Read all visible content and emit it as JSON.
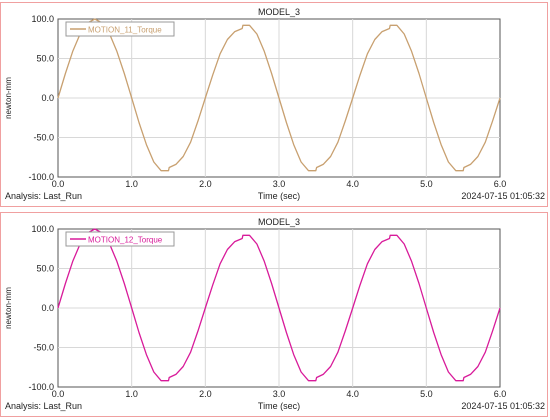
{
  "chart_data": [
    {
      "type": "line",
      "title": "MODEL_3",
      "xlabel": "Time (sec)",
      "ylabel": "newton-mm",
      "xlim": [
        0,
        6
      ],
      "ylim": [
        -100,
        100
      ],
      "xticks": [
        "0.0",
        "1.0",
        "2.0",
        "3.0",
        "4.0",
        "5.0",
        "6.0"
      ],
      "yticks": [
        "100.0",
        "50.0",
        "0.0",
        "-50.0",
        "-100.0"
      ],
      "grid": true,
      "legend_position": "top-left",
      "footer_left": "Analysis:  Last_Run",
      "footer_right": "2024-07-15 01:05:32",
      "series": [
        {
          "name": "MOTION_11_Torque",
          "color": "#c8a070",
          "x": [
            0.0,
            0.1,
            0.2,
            0.3,
            0.4,
            0.5,
            0.6,
            0.7,
            0.8,
            0.9,
            1.0,
            1.1,
            1.2,
            1.3,
            1.4,
            1.5,
            1.51,
            1.6,
            1.7,
            1.8,
            1.9,
            2.0,
            2.1,
            2.2,
            2.3,
            2.4,
            2.5,
            2.51,
            2.6,
            2.7,
            2.8,
            2.9,
            3.0,
            3.1,
            3.2,
            3.3,
            3.4,
            3.5,
            3.51,
            3.6,
            3.7,
            3.8,
            3.9,
            4.0,
            4.1,
            4.2,
            4.3,
            4.4,
            4.5,
            4.51,
            4.6,
            4.7,
            4.8,
            4.9,
            5.0,
            5.1,
            5.2,
            5.3,
            5.4,
            5.5,
            5.51,
            5.6,
            5.7,
            5.8,
            5.9,
            6.0
          ],
          "y": [
            0,
            31,
            59,
            81,
            95,
            100,
            95,
            81,
            59,
            31,
            0,
            -31,
            -59,
            -81,
            -92,
            -92,
            -88,
            -84,
            -74,
            -56,
            -29,
            0,
            29,
            56,
            74,
            84,
            88,
            92,
            92,
            81,
            59,
            31,
            0,
            -31,
            -59,
            -81,
            -92,
            -92,
            -88,
            -84,
            -74,
            -56,
            -29,
            0,
            29,
            56,
            74,
            84,
            88,
            92,
            92,
            81,
            59,
            31,
            0,
            -31,
            -59,
            -81,
            -92,
            -92,
            -88,
            -84,
            -74,
            -56,
            -29,
            0
          ]
        }
      ]
    },
    {
      "type": "line",
      "title": "MODEL_3",
      "xlabel": "Time (sec)",
      "ylabel": "newton-mm",
      "xlim": [
        0,
        6
      ],
      "ylim": [
        -100,
        100
      ],
      "xticks": [
        "0.0",
        "1.0",
        "2.0",
        "3.0",
        "4.0",
        "5.0",
        "6.0"
      ],
      "yticks": [
        "100.0",
        "50.0",
        "0.0",
        "-50.0",
        "-100.0"
      ],
      "grid": true,
      "legend_position": "top-left",
      "footer_left": "Analysis:  Last_Run",
      "footer_right": "2024-07-15 01:05:32",
      "series": [
        {
          "name": "MOTION_12_Torque",
          "color": "#d81b9a",
          "x": [
            0.0,
            0.1,
            0.2,
            0.3,
            0.4,
            0.5,
            0.6,
            0.7,
            0.8,
            0.9,
            1.0,
            1.1,
            1.2,
            1.3,
            1.4,
            1.5,
            1.51,
            1.6,
            1.7,
            1.8,
            1.9,
            2.0,
            2.1,
            2.2,
            2.3,
            2.4,
            2.5,
            2.51,
            2.6,
            2.7,
            2.8,
            2.9,
            3.0,
            3.1,
            3.2,
            3.3,
            3.4,
            3.5,
            3.51,
            3.6,
            3.7,
            3.8,
            3.9,
            4.0,
            4.1,
            4.2,
            4.3,
            4.4,
            4.5,
            4.51,
            4.6,
            4.7,
            4.8,
            4.9,
            5.0,
            5.1,
            5.2,
            5.3,
            5.4,
            5.5,
            5.51,
            5.6,
            5.7,
            5.8,
            5.9,
            6.0
          ],
          "y": [
            0,
            31,
            59,
            81,
            95,
            100,
            95,
            81,
            59,
            31,
            0,
            -31,
            -59,
            -81,
            -92,
            -92,
            -88,
            -84,
            -74,
            -56,
            -29,
            0,
            29,
            56,
            74,
            84,
            88,
            92,
            92,
            81,
            59,
            31,
            0,
            -31,
            -59,
            -81,
            -92,
            -92,
            -88,
            -84,
            -74,
            -56,
            -29,
            0,
            29,
            56,
            74,
            84,
            88,
            92,
            92,
            81,
            59,
            31,
            0,
            -31,
            -59,
            -81,
            -92,
            -92,
            -88,
            -84,
            -74,
            -56,
            -29,
            0
          ]
        }
      ]
    }
  ]
}
